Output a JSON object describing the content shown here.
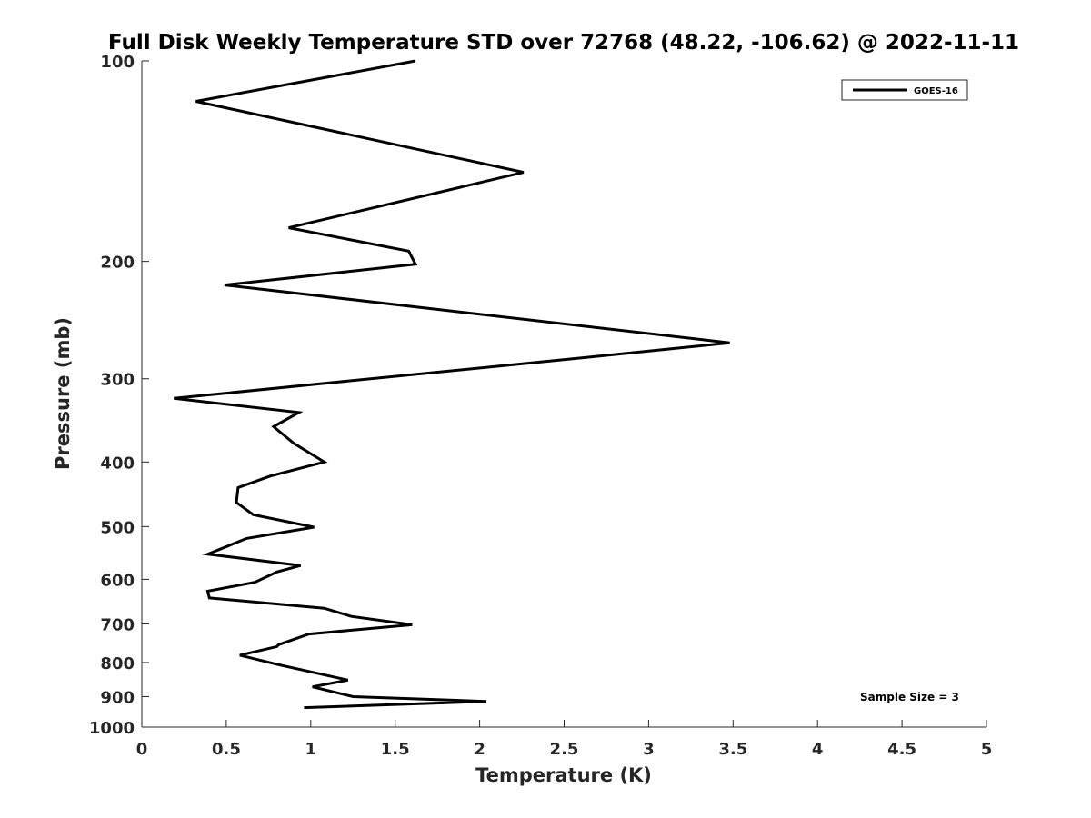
{
  "chart_data": {
    "type": "line",
    "title": "Full Disk Weekly Temperature STD over 72768 (48.22, -106.62) @ 2022-11-11",
    "xlabel": "Temperature (K)",
    "ylabel": "Pressure (mb)",
    "xlim": [
      0,
      5
    ],
    "ylim": [
      100,
      1000
    ],
    "y_scale": "log",
    "y_reversed": true,
    "grid": false,
    "x_ticks": [
      0,
      0.5,
      1,
      1.5,
      2,
      2.5,
      3,
      3.5,
      4,
      4.5,
      5
    ],
    "x_tick_labels": [
      "0",
      "0.5",
      "1",
      "1.5",
      "2",
      "2.5",
      "3",
      "3.5",
      "4",
      "4.5",
      "5"
    ],
    "y_ticks": [
      100,
      200,
      300,
      400,
      500,
      600,
      700,
      800,
      900,
      1000
    ],
    "y_tick_labels": [
      "100",
      "200",
      "300",
      "400",
      "500",
      "600",
      "700",
      "800",
      "900",
      "1000"
    ],
    "legend_position": "top-right",
    "series": [
      {
        "name": "GOES-16",
        "color": "#000000",
        "x": [
          1.62,
          0.32,
          2.26,
          0.87,
          1.58,
          1.62,
          0.49,
          3.48,
          2.55,
          1.13,
          0.19,
          0.93,
          0.78,
          0.9,
          1.08,
          0.76,
          0.57,
          0.56,
          0.66,
          1.02,
          0.62,
          0.39,
          0.94,
          0.8,
          0.67,
          0.39,
          0.4,
          1.08,
          1.24,
          1.6,
          0.99,
          0.81,
          0.8,
          0.58,
          0.8,
          1.22,
          1.01,
          1.25,
          2.04,
          0.96
        ],
        "y": [
          100,
          115,
          147,
          178,
          193,
          202,
          217,
          265,
          280,
          304,
          321,
          337,
          354,
          375,
          400,
          420,
          437,
          460,
          480,
          501,
          521,
          550,
          572,
          585,
          606,
          625,
          640,
          663,
          682,
          702,
          725,
          752,
          757,
          780,
          805,
          850,
          870,
          900,
          915,
          935
        ]
      }
    ],
    "annotation": "Sample Size = 3"
  }
}
